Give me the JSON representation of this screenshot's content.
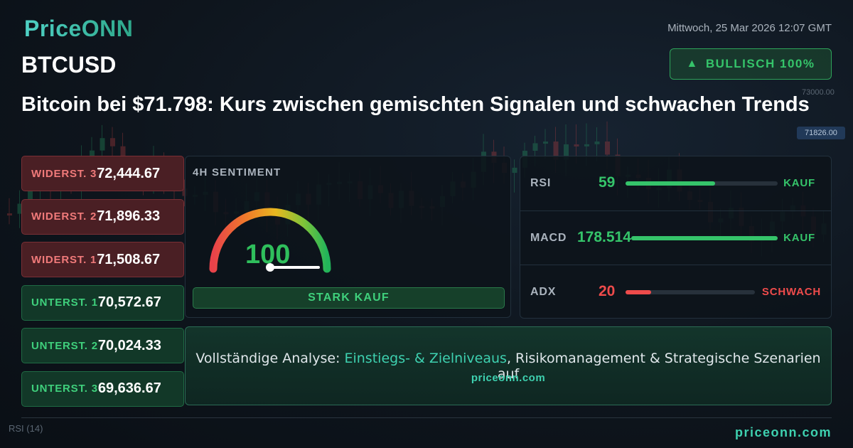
{
  "brand": {
    "logo": "PriceONN"
  },
  "date": "Mittwoch, 25 Mar 2026 12:07 GMT",
  "symbol": "BTCUSD",
  "signal": {
    "arrow": "▲",
    "label": "BULLISCH 100%"
  },
  "headline": "Bitcoin bei $71.798: Kurs zwischen gemischten Signalen und schwachen Trends",
  "levels": [
    {
      "label": "WIDERST. 3",
      "value": "72,444.67",
      "kind": "resistance"
    },
    {
      "label": "WIDERST. 2",
      "value": "71,896.33",
      "kind": "resistance"
    },
    {
      "label": "WIDERST. 1",
      "value": "71,508.67",
      "kind": "resistance"
    },
    {
      "label": "UNTERST. 1",
      "value": "70,572.67",
      "kind": "support"
    },
    {
      "label": "UNTERST. 2",
      "value": "70,024.33",
      "kind": "support"
    },
    {
      "label": "UNTERST. 3",
      "value": "69,636.67",
      "kind": "support"
    }
  ],
  "sentiment": {
    "title": "4H SENTIMENT",
    "value": "100",
    "score": 100,
    "verdict": "STARK KAUF"
  },
  "indicators": [
    {
      "name": "RSI",
      "value": "59",
      "signal": "KAUF",
      "level": 0.59,
      "color": "#35c46a"
    },
    {
      "name": "MACD",
      "value": "178.514",
      "signal": "KAUF",
      "level": 1.0,
      "color": "#35c46a"
    },
    {
      "name": "ADX",
      "value": "20",
      "signal": "SCHWACH",
      "level": 0.2,
      "color": "#ee4b4b"
    }
  ],
  "cta": {
    "prefix": "Vollständige Analyse: ",
    "highlight": "Einstiegs- & Zielniveaus",
    "suffix": ", Risikomanagement & Strategische Szenarien auf",
    "url": "priceonn.com"
  },
  "footer": {
    "url": "priceonn.com",
    "rsi_label": "RSI",
    "rsi_period": "(14)"
  },
  "chart_bg": {
    "price_tag": "71826.00",
    "axis_label": "73000.00"
  },
  "colors": {
    "accent": "#3ed1b0",
    "buy": "#35c46a",
    "sell": "#ee4b4b"
  }
}
